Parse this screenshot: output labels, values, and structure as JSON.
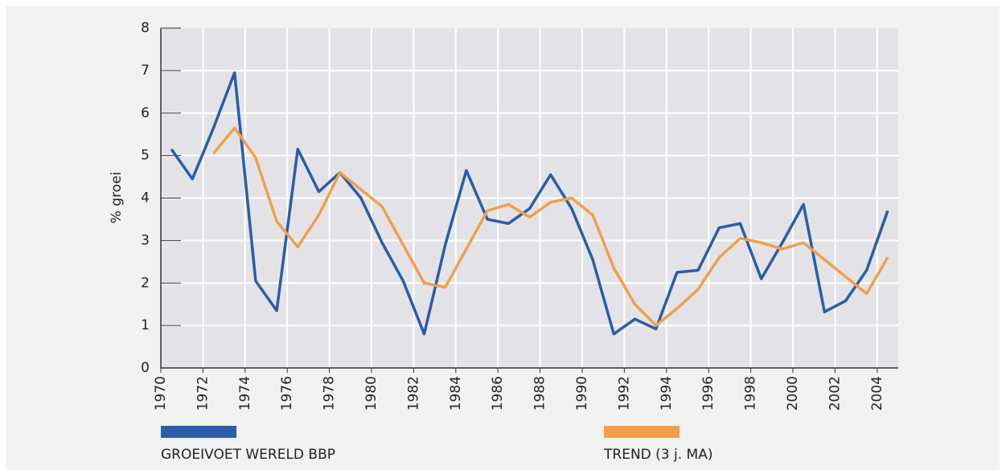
{
  "chart_data": {
    "type": "line",
    "y_label": "% groei",
    "categories": [
      "1970",
      null,
      "1972",
      null,
      "1974",
      null,
      "1976",
      null,
      "1978",
      null,
      "1980",
      null,
      "1982",
      null,
      "1984",
      null,
      "1986",
      null,
      "1988",
      null,
      "1990",
      null,
      "1992",
      null,
      "1994",
      null,
      "1996",
      null,
      "1998",
      null,
      "2000",
      null,
      "2002",
      null,
      "2004"
    ],
    "series": [
      {
        "name": "GROEIVOET WERELD BBP",
        "color": "#2a5ea6",
        "values": [
          5.15,
          4.45,
          5.65,
          6.95,
          2.05,
          1.35,
          5.15,
          4.15,
          4.6,
          4.0,
          2.95,
          2.05,
          0.8,
          2.9,
          4.65,
          3.5,
          3.4,
          3.75,
          4.55,
          3.75,
          2.55,
          0.8,
          1.15,
          0.92,
          2.25,
          2.3,
          3.3,
          3.4,
          2.1,
          2.95,
          3.85,
          1.32,
          1.58,
          2.3,
          3.7
        ]
      },
      {
        "name": "TREND (3 j. MA)",
        "color": "#f0a04b",
        "values": [
          null,
          null,
          5.05,
          5.65,
          4.95,
          3.45,
          2.85,
          3.6,
          4.6,
          4.2,
          3.8,
          2.9,
          2.0,
          1.9,
          2.8,
          3.7,
          3.85,
          3.55,
          3.9,
          4.0,
          3.6,
          2.35,
          1.5,
          1.0,
          1.4,
          1.85,
          2.6,
          3.05,
          2.95,
          2.8,
          2.95,
          2.55,
          2.15,
          1.75,
          2.6
        ]
      }
    ],
    "ylim": [
      0,
      8
    ],
    "yticks": [
      0,
      1,
      2,
      3,
      4,
      5,
      6,
      7,
      8
    ],
    "grid": true
  }
}
